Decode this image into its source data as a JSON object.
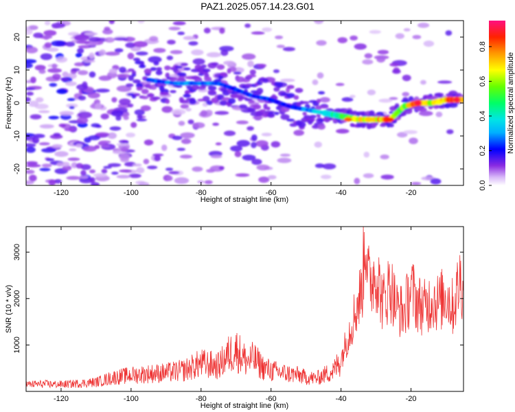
{
  "title": "PAZ1.2025.057.14.23.G01",
  "chart_data": [
    {
      "type": "heatmap",
      "name": "spectrogram",
      "xlabel": "Height of straight line (km)",
      "ylabel": "Frequency (Hz)",
      "xlim": [
        -130,
        -5
      ],
      "ylim": [
        -25,
        25
      ],
      "xticks": [
        -120,
        -100,
        -80,
        -60,
        -40,
        -20
      ],
      "yticks": [
        -20,
        -10,
        0,
        10,
        20
      ],
      "colorbar": {
        "label": "Normalized spectral amplitude",
        "range": [
          0,
          0.95
        ],
        "ticks": [
          0.0,
          0.2,
          0.4,
          0.6,
          0.8
        ]
      },
      "ridge": {
        "x": [
          -95,
          -88,
          -80,
          -75,
          -70,
          -65,
          -60,
          -55,
          -50,
          -45,
          -40,
          -35,
          -30,
          -26,
          -22,
          -18,
          -14,
          -10,
          -5
        ],
        "freq": [
          7,
          6,
          6,
          6,
          4,
          2,
          1,
          -1,
          -2,
          -3,
          -4,
          -5,
          -5,
          -5,
          -1,
          0,
          0,
          1,
          1
        ],
        "amplitude": [
          0.25,
          0.3,
          0.3,
          0.3,
          0.25,
          0.25,
          0.25,
          0.2,
          0.3,
          0.4,
          0.5,
          0.7,
          0.75,
          0.85,
          0.6,
          0.9,
          0.7,
          0.8,
          0.95
        ]
      }
    },
    {
      "type": "line",
      "name": "snr",
      "xlabel": "Height of straight line (km)",
      "ylabel": "SNR (10 * v/v)",
      "xlim": [
        -130,
        -5
      ],
      "ylim": [
        0,
        3550
      ],
      "xticks": [
        -120,
        -100,
        -80,
        -60,
        -40,
        -20
      ],
      "yticks": [
        1000,
        2000,
        3000
      ],
      "color": "#ee3333",
      "series": [
        {
          "x": [
            -130,
            -125,
            -120,
            -115,
            -110,
            -105,
            -100,
            -95,
            -90,
            -85,
            -80,
            -75,
            -72,
            -70,
            -67,
            -65,
            -62,
            -60,
            -57,
            -55,
            -52,
            -50,
            -47,
            -45,
            -42,
            -40,
            -38,
            -36,
            -34,
            -33,
            -32,
            -30,
            -28,
            -26,
            -24,
            -22,
            -20,
            -18,
            -16,
            -14,
            -12,
            -10,
            -8,
            -6,
            -5
          ],
          "y": [
            150,
            160,
            150,
            170,
            200,
            300,
            350,
            380,
            400,
            450,
            600,
            550,
            800,
            900,
            650,
            700,
            500,
            450,
            400,
            380,
            350,
            300,
            280,
            350,
            450,
            700,
            1200,
            1700,
            2200,
            3450,
            2300,
            2600,
            1900,
            2300,
            1800,
            1700,
            2200,
            1900,
            1800,
            2000,
            1900,
            2100,
            1800,
            2400,
            2300
          ]
        }
      ]
    }
  ]
}
